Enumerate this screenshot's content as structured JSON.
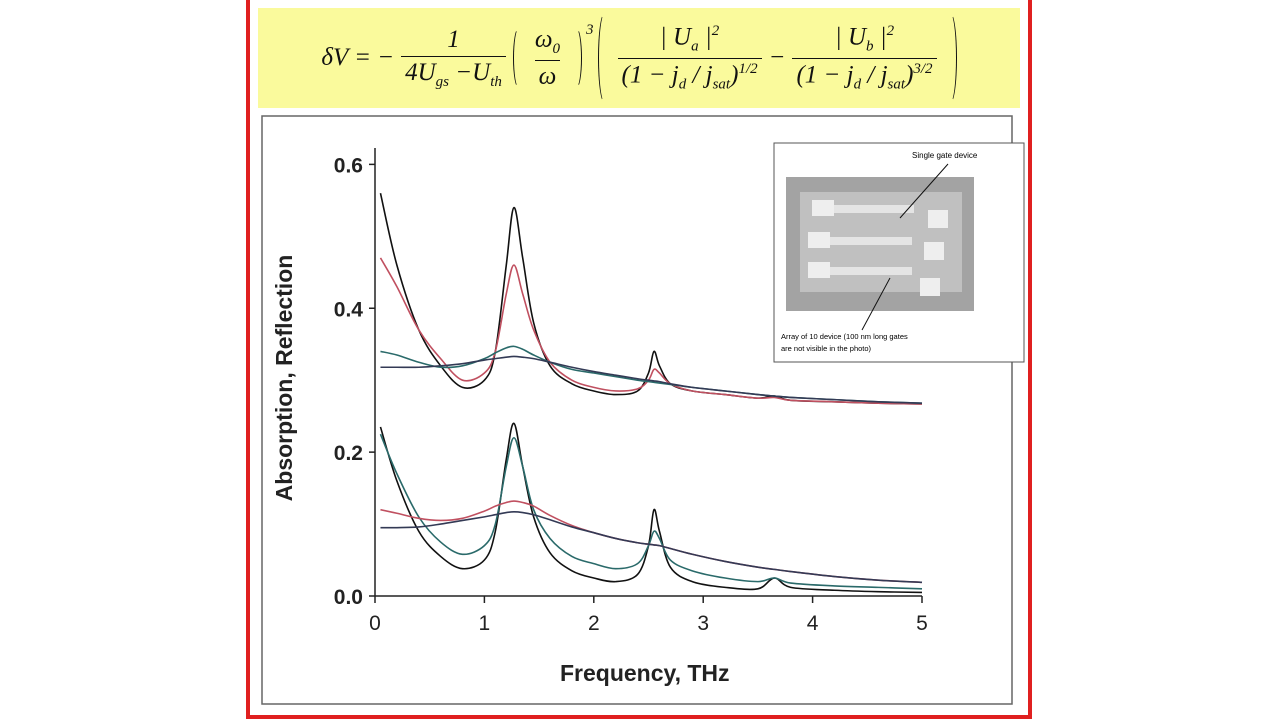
{
  "formula": {
    "lhs": "δV = −",
    "f1_num": "1",
    "f1_den": "4U",
    "f1_den_sub1": "gs",
    "f1_den_mid": " −U",
    "f1_den_sub2": "th",
    "f2_num": "ω",
    "f2_num_sub": "0",
    "f2_den": "ω",
    "power": "3",
    "f3_num": "| U",
    "f3_num_sub": "a",
    "f3_num_end": " |",
    "f3_num_sup": "2",
    "f3_den": "(1 − j",
    "f3_den_sub1": "d",
    "f3_den_mid": " / j",
    "f3_den_sub2": "sat",
    "f3_den_end": ")",
    "f3_den_sup": "1/2",
    "minus": "−",
    "f4_num": "| U",
    "f4_num_sub": "b",
    "f4_num_end": " |",
    "f4_num_sup": "2",
    "f4_den": "(1 − j",
    "f4_den_sub1": "d",
    "f4_den_mid": " / j",
    "f4_den_sub2": "sat",
    "f4_den_end": ")",
    "f4_den_sup": "3/2"
  },
  "inset": {
    "top_label": "Single gate device",
    "bottom_label": [
      "Array of 10 device (100 nm long gates",
      "are not visible in the photo)"
    ]
  },
  "chart_data": {
    "type": "line",
    "x_label": "Frequency, THz",
    "y_label": "Absorption, Reflection",
    "xlim": [
      0,
      5
    ],
    "xticks": [
      0,
      1,
      2,
      3,
      4,
      5
    ],
    "ylim": [
      0,
      0.62
    ],
    "yticks": [
      {
        "value": 0,
        "label": "0.0"
      },
      {
        "value": 0.2,
        "label": "0.2"
      },
      {
        "value": 0.4,
        "label": "0.4"
      },
      {
        "value": 0.6,
        "label": "0.6"
      }
    ],
    "x": [
      0.05,
      0.2,
      0.4,
      0.6,
      0.8,
      1.0,
      1.1,
      1.2,
      1.27,
      1.35,
      1.45,
      1.6,
      1.8,
      2.0,
      2.2,
      2.4,
      2.5,
      2.55,
      2.6,
      2.7,
      2.9,
      3.2,
      3.5,
      3.65,
      3.8,
      4.2,
      4.6,
      5.0
    ],
    "series": [
      {
        "color": "#111111",
        "values": [
          0.56,
          0.46,
          0.37,
          0.32,
          0.29,
          0.3,
          0.34,
          0.46,
          0.54,
          0.47,
          0.38,
          0.32,
          0.295,
          0.285,
          0.28,
          0.285,
          0.31,
          0.34,
          0.32,
          0.295,
          0.285,
          0.28,
          0.275,
          0.278,
          0.272,
          0.27,
          0.268,
          0.267
        ]
      },
      {
        "color": "#c05060",
        "values": [
          0.47,
          0.43,
          0.37,
          0.33,
          0.3,
          0.31,
          0.34,
          0.42,
          0.46,
          0.42,
          0.37,
          0.325,
          0.3,
          0.29,
          0.285,
          0.288,
          0.3,
          0.315,
          0.31,
          0.295,
          0.285,
          0.28,
          0.275,
          0.276,
          0.272,
          0.27,
          0.268,
          0.267
        ]
      },
      {
        "color": "#2a6a6a",
        "values": [
          0.34,
          0.335,
          0.325,
          0.318,
          0.32,
          0.33,
          0.338,
          0.345,
          0.347,
          0.343,
          0.335,
          0.325,
          0.315,
          0.31,
          0.305,
          0.3,
          0.298,
          0.297,
          0.296,
          0.294,
          0.29,
          0.285,
          0.28,
          0.278,
          0.276,
          0.273,
          0.27,
          0.268
        ]
      },
      {
        "color": "#333a55",
        "values": [
          0.318,
          0.318,
          0.318,
          0.32,
          0.323,
          0.328,
          0.33,
          0.332,
          0.333,
          0.332,
          0.33,
          0.325,
          0.318,
          0.312,
          0.307,
          0.302,
          0.3,
          0.299,
          0.298,
          0.295,
          0.29,
          0.285,
          0.28,
          0.278,
          0.276,
          0.273,
          0.27,
          0.268
        ]
      },
      {
        "color": "#111111",
        "values": [
          0.235,
          0.16,
          0.09,
          0.055,
          0.038,
          0.05,
          0.09,
          0.19,
          0.24,
          0.18,
          0.11,
          0.06,
          0.035,
          0.025,
          0.02,
          0.03,
          0.07,
          0.12,
          0.09,
          0.04,
          0.02,
          0.012,
          0.01,
          0.025,
          0.012,
          0.008,
          0.006,
          0.005
        ]
      },
      {
        "color": "#2a6a6a",
        "values": [
          0.225,
          0.17,
          0.11,
          0.075,
          0.058,
          0.07,
          0.1,
          0.18,
          0.22,
          0.18,
          0.12,
          0.08,
          0.055,
          0.045,
          0.038,
          0.045,
          0.07,
          0.09,
          0.08,
          0.05,
          0.035,
          0.025,
          0.02,
          0.025,
          0.018,
          0.014,
          0.012,
          0.01
        ]
      },
      {
        "color": "#c05060",
        "values": [
          0.12,
          0.115,
          0.108,
          0.105,
          0.108,
          0.118,
          0.125,
          0.13,
          0.132,
          0.13,
          0.125,
          0.112,
          0.098,
          0.088,
          0.08,
          0.074,
          0.072,
          0.071,
          0.07,
          0.066,
          0.058,
          0.048,
          0.04,
          0.037,
          0.034,
          0.027,
          0.022,
          0.019
        ]
      },
      {
        "color": "#333a55",
        "values": [
          0.095,
          0.095,
          0.096,
          0.1,
          0.105,
          0.11,
          0.113,
          0.116,
          0.117,
          0.116,
          0.113,
          0.106,
          0.096,
          0.088,
          0.08,
          0.074,
          0.072,
          0.071,
          0.07,
          0.066,
          0.058,
          0.048,
          0.04,
          0.037,
          0.034,
          0.027,
          0.022,
          0.019
        ]
      }
    ]
  }
}
